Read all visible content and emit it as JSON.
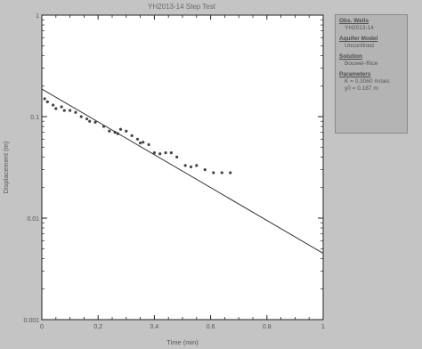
{
  "window": {
    "title": "YH2013-14 Step Test"
  },
  "legend": {
    "sections": [
      {
        "heading": "Obs. Wells",
        "lines": [
          "YH2013-14"
        ]
      },
      {
        "heading": "Aquifer Model",
        "lines": [
          "Unconfined"
        ]
      },
      {
        "heading": "Solution",
        "lines": [
          "Bouwer-Rice"
        ]
      },
      {
        "heading": "Parameters",
        "lines": [
          "K = 0.3060 m/sec",
          "y0 = 0.187 m"
        ]
      }
    ]
  },
  "chart_data": {
    "type": "scatter",
    "title": "YH2013-14 Step Test",
    "xlabel": "Time (min)",
    "ylabel": "Displacement (m)",
    "xlim": [
      0,
      1
    ],
    "ylim": [
      0.001,
      1
    ],
    "yscale": "log",
    "x_ticks": [
      "0",
      "0.2",
      "0.4",
      "0.6",
      "0.8",
      "1"
    ],
    "y_ticks": [
      "0.001",
      "0.01",
      "0.1",
      "1"
    ],
    "grid": false,
    "series": [
      {
        "kind": "points",
        "x": [
          0.01,
          0.02,
          0.04,
          0.05,
          0.07,
          0.08,
          0.1,
          0.12,
          0.14,
          0.16,
          0.17,
          0.19,
          0.22,
          0.24,
          0.26,
          0.27,
          0.28,
          0.3,
          0.32,
          0.34,
          0.35,
          0.36,
          0.38,
          0.4,
          0.42,
          0.44,
          0.46,
          0.48,
          0.51,
          0.53,
          0.55,
          0.58,
          0.61,
          0.64,
          0.67
        ],
        "y": [
          0.15,
          0.14,
          0.13,
          0.12,
          0.125,
          0.115,
          0.115,
          0.11,
          0.1,
          0.095,
          0.09,
          0.088,
          0.08,
          0.072,
          0.07,
          0.068,
          0.075,
          0.072,
          0.065,
          0.06,
          0.055,
          0.056,
          0.053,
          0.044,
          0.043,
          0.044,
          0.044,
          0.04,
          0.033,
          0.032,
          0.033,
          0.03,
          0.028,
          0.028,
          0.028
        ]
      },
      {
        "kind": "fit-line",
        "x": [
          0,
          1
        ],
        "y": [
          0.187,
          0.0045
        ]
      }
    ]
  }
}
